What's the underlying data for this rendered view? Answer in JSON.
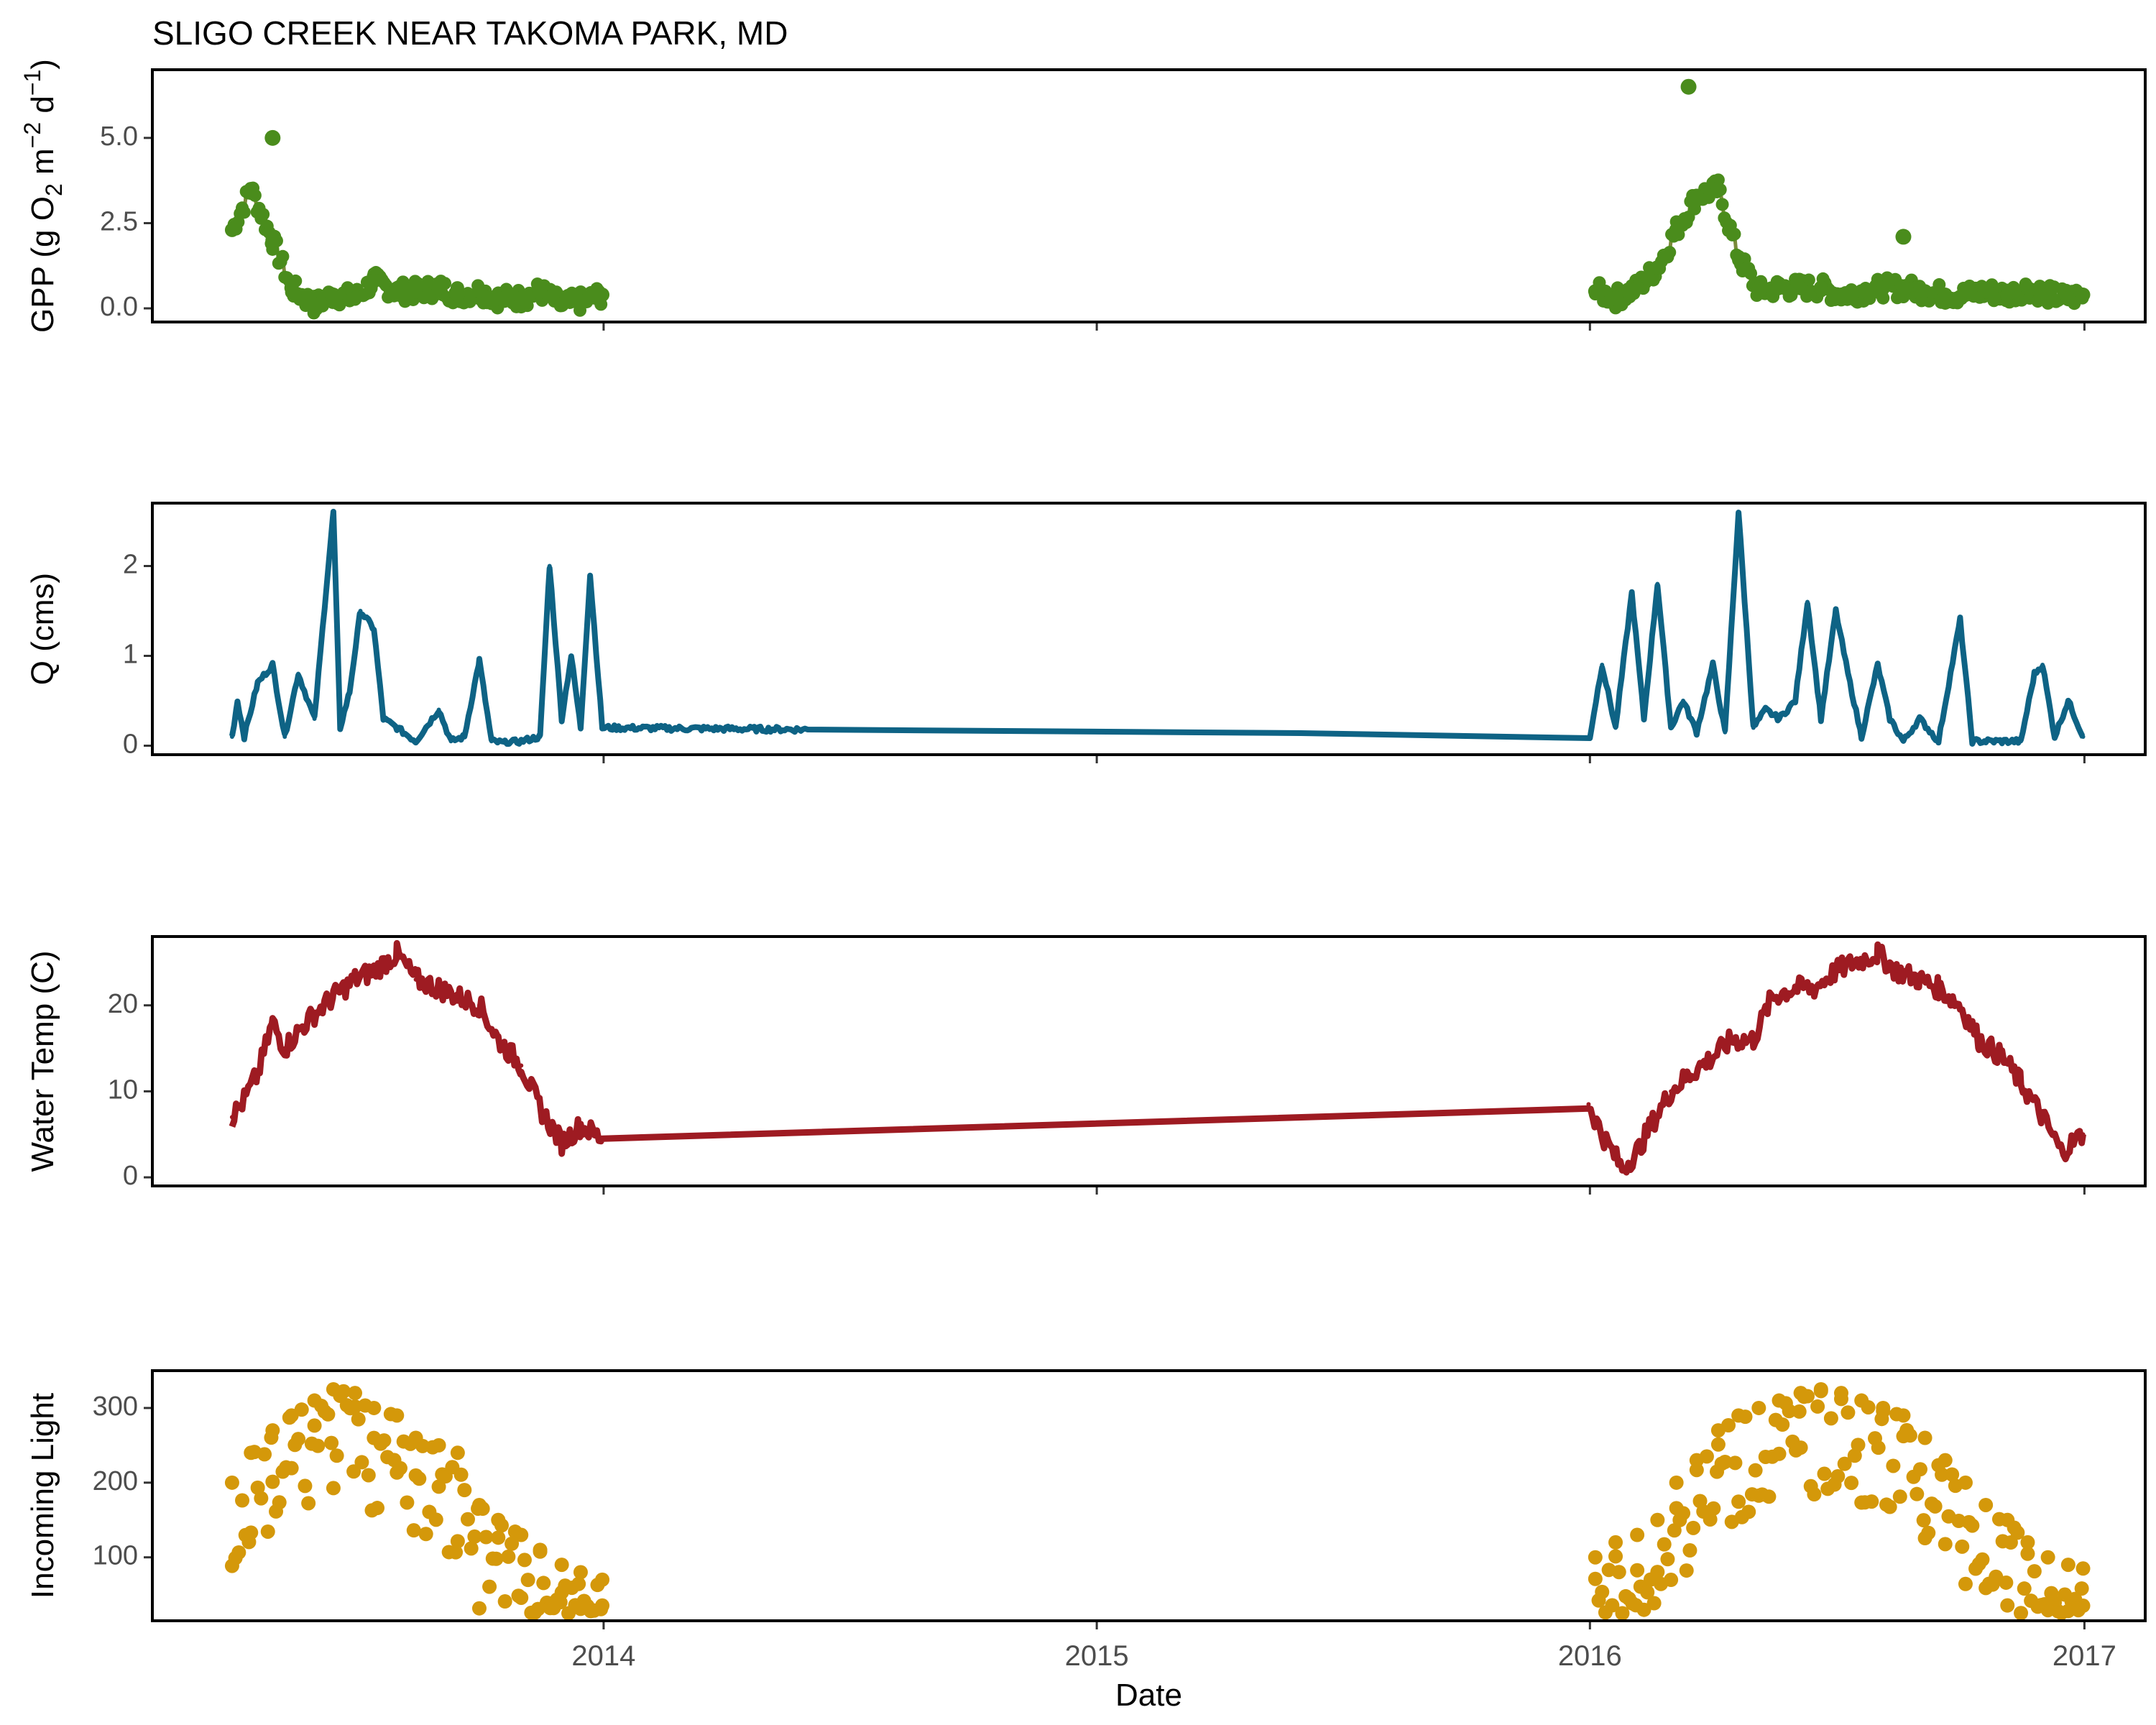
{
  "title": "SLIGO CREEK NEAR TAKOMA PARK, MD",
  "chart_data": [
    {
      "type": "scatter",
      "id": "gpp",
      "ylabel_parts": {
        "main": "GPP (g  O",
        "sub": "2",
        "mid1": " m",
        "sup1": "−2",
        "mid2": " d",
        "sup2": "−1",
        "end": ")"
      },
      "ylabel": "GPP (g  O2 m−2 d−1)",
      "ylim": [
        -0.4,
        7.0
      ],
      "yticks": [
        0.0,
        2.5,
        5.0
      ],
      "ytick_labels": [
        "0.0",
        "2.5",
        "5.0"
      ],
      "color": "#4a8c1c",
      "line_color": "#7a8a3a",
      "x": [
        "2013-04-01",
        "2013-04-15",
        "2013-05-01",
        "2013-05-15",
        "2013-06-01",
        "2013-06-15",
        "2013-07-01",
        "2013-07-15",
        "2013-08-01",
        "2013-08-15",
        "2013-09-01",
        "2013-09-15",
        "2013-10-01",
        "2013-10-15",
        "2013-11-01",
        "2013-11-15",
        "2013-12-01",
        "2013-12-15",
        "2013-12-31",
        "2016-01-05",
        "2016-01-20",
        "2016-02-05",
        "2016-02-20",
        "2016-03-05",
        "2016-03-20",
        "2016-04-05",
        "2016-04-20",
        "2016-05-05",
        "2016-05-20",
        "2016-06-05",
        "2016-06-20",
        "2016-07-05",
        "2016-07-20",
        "2016-08-05",
        "2016-08-20",
        "2016-09-05",
        "2016-09-20",
        "2016-10-05",
        "2016-10-20",
        "2016-11-05",
        "2016-11-20",
        "2016-12-05",
        "2016-12-20",
        "2016-12-31"
      ],
      "y": [
        2.3,
        3.5,
        2.0,
        0.6,
        0.1,
        0.4,
        0.3,
        0.8,
        0.5,
        0.5,
        0.6,
        0.4,
        0.5,
        0.3,
        0.3,
        0.5,
        0.1,
        0.2,
        0.4,
        0.5,
        0.3,
        0.6,
        1.2,
        2.3,
        3.3,
        3.5,
        1.5,
        0.5,
        0.6,
        0.6,
        0.6,
        0.4,
        0.5,
        0.6,
        0.6,
        0.5,
        0.4,
        0.4,
        0.5,
        0.4,
        0.6,
        0.4,
        0.3,
        0.4
      ],
      "outliers": [
        {
          "x": "2013-05-01",
          "y": 5.0
        },
        {
          "x": "2016-03-14",
          "y": 6.5
        },
        {
          "x": "2016-08-20",
          "y": 2.1
        }
      ]
    },
    {
      "type": "line",
      "id": "q",
      "ylabel": "Q (cms)",
      "ylim": [
        -0.1,
        2.7
      ],
      "yticks": [
        0,
        1,
        2
      ],
      "ytick_labels": [
        "0",
        "1",
        "2"
      ],
      "color": "#0e6385",
      "x": [
        "2013-04-01",
        "2013-04-05",
        "2013-04-10",
        "2013-04-20",
        "2013-05-01",
        "2013-05-10",
        "2013-05-20",
        "2013-06-01",
        "2013-06-10",
        "2013-06-15",
        "2013-06-20",
        "2013-06-27",
        "2013-07-05",
        "2013-07-15",
        "2013-07-22",
        "2013-08-01",
        "2013-08-15",
        "2013-09-01",
        "2013-09-10",
        "2013-09-20",
        "2013-10-01",
        "2013-10-10",
        "2013-10-20",
        "2013-11-01",
        "2013-11-15",
        "2013-11-22",
        "2013-12-01",
        "2013-12-08",
        "2013-12-15",
        "2013-12-22",
        "2013-12-31",
        "2014-06-01",
        "2015-06-01",
        "2016-01-01",
        "2016-01-10",
        "2016-01-20",
        "2016-02-01",
        "2016-02-10",
        "2016-02-20",
        "2016-03-01",
        "2016-03-10",
        "2016-03-20",
        "2016-04-01",
        "2016-04-10",
        "2016-04-20",
        "2016-05-01",
        "2016-05-10",
        "2016-05-20",
        "2016-06-01",
        "2016-06-10",
        "2016-06-20",
        "2016-07-01",
        "2016-07-10",
        "2016-07-20",
        "2016-08-01",
        "2016-08-10",
        "2016-08-20",
        "2016-09-01",
        "2016-09-15",
        "2016-10-01",
        "2016-10-10",
        "2016-10-20",
        "2016-11-01",
        "2016-11-15",
        "2016-11-25",
        "2016-12-01",
        "2016-12-10",
        "2016-12-20",
        "2016-12-31"
      ],
      "y": [
        0.1,
        0.5,
        0.1,
        0.7,
        0.9,
        0.1,
        0.8,
        0.3,
        1.8,
        2.6,
        0.2,
        0.6,
        1.5,
        1.3,
        0.3,
        0.2,
        0.05,
        0.4,
        0.05,
        0.1,
        0.95,
        0.05,
        0.03,
        0.05,
        0.1,
        2.0,
        0.3,
        1.0,
        0.2,
        1.9,
        0.2,
        0.18,
        0.14,
        0.1,
        0.9,
        0.2,
        1.7,
        0.3,
        1.8,
        0.2,
        0.5,
        0.15,
        0.9,
        0.15,
        2.6,
        0.2,
        0.4,
        0.3,
        0.5,
        1.6,
        0.3,
        1.5,
        0.8,
        0.1,
        0.9,
        0.3,
        0.05,
        0.3,
        0.05,
        1.4,
        0.05,
        0.05,
        0.05,
        0.05,
        0.8,
        0.9,
        0.1,
        0.5,
        0.1
      ]
    },
    {
      "type": "line",
      "id": "temp",
      "ylabel": "Water Temp (C)",
      "ylim": [
        -1.0,
        28.0
      ],
      "yticks": [
        0,
        10,
        20
      ],
      "ytick_labels": [
        "0",
        "10",
        "20"
      ],
      "color": "#9e1b22",
      "x": [
        "2013-04-01",
        "2013-04-10",
        "2013-04-20",
        "2013-05-01",
        "2013-05-10",
        "2013-05-20",
        "2013-06-01",
        "2013-06-15",
        "2013-07-01",
        "2013-07-15",
        "2013-08-01",
        "2013-08-15",
        "2013-09-01",
        "2013-09-15",
        "2013-10-01",
        "2013-10-15",
        "2013-11-01",
        "2013-11-15",
        "2013-12-01",
        "2013-12-15",
        "2013-12-31",
        "2015-12-31",
        "2016-01-10",
        "2016-01-25",
        "2016-02-05",
        "2016-02-15",
        "2016-03-01",
        "2016-03-15",
        "2016-04-01",
        "2016-04-15",
        "2016-05-01",
        "2016-05-15",
        "2016-06-01",
        "2016-06-15",
        "2016-07-01",
        "2016-07-15",
        "2016-08-01",
        "2016-08-15",
        "2016-09-01",
        "2016-09-15",
        "2016-10-01",
        "2016-10-15",
        "2016-11-01",
        "2016-11-15",
        "2016-12-01",
        "2016-12-15",
        "2016-12-31"
      ],
      "y": [
        7,
        9,
        12,
        18,
        15,
        17,
        19,
        21,
        23,
        24,
        26,
        23,
        22,
        21,
        20,
        16,
        13,
        8,
        4,
        6,
        4.5,
        8.5,
        5,
        1,
        3,
        6,
        10,
        12,
        14,
        16,
        16,
        21,
        22,
        22,
        24,
        25,
        26,
        24,
        23,
        22,
        20,
        16,
        14,
        11,
        7,
        3,
        5
      ]
    },
    {
      "type": "scatter",
      "id": "light",
      "ylabel": "Incoming Light",
      "ylim": [
        15,
        350
      ],
      "yticks": [
        100,
        200,
        300
      ],
      "ytick_labels": [
        "100",
        "200",
        "300"
      ],
      "xlabel": "Date",
      "xticks": [
        "2014-01-01",
        "2015-01-01",
        "2016-01-01",
        "2017-01-01"
      ],
      "xtick_labels": [
        "2014",
        "2015",
        "2016",
        "2017"
      ],
      "color": "#d4980a",
      "x": [
        "2013-04-01",
        "2013-04-15",
        "2013-05-01",
        "2013-05-15",
        "2013-06-01",
        "2013-06-15",
        "2013-07-01",
        "2013-07-15",
        "2013-08-01",
        "2013-08-15",
        "2013-09-01",
        "2013-09-15",
        "2013-10-01",
        "2013-10-15",
        "2013-11-01",
        "2013-11-15",
        "2013-12-01",
        "2013-12-15",
        "2013-12-31",
        "2016-01-05",
        "2016-01-20",
        "2016-02-05",
        "2016-02-20",
        "2016-03-05",
        "2016-03-20",
        "2016-04-05",
        "2016-04-20",
        "2016-05-05",
        "2016-05-20",
        "2016-06-05",
        "2016-06-20",
        "2016-07-05",
        "2016-07-20",
        "2016-08-05",
        "2016-08-20",
        "2016-09-05",
        "2016-09-20",
        "2016-10-05",
        "2016-10-20",
        "2016-11-05",
        "2016-11-20",
        "2016-12-05",
        "2016-12-20",
        "2016-12-31"
      ],
      "y": [
        200,
        240,
        270,
        290,
        310,
        325,
        320,
        300,
        290,
        260,
        250,
        240,
        170,
        150,
        130,
        110,
        90,
        80,
        70,
        100,
        120,
        130,
        150,
        200,
        230,
        270,
        290,
        300,
        310,
        320,
        325,
        320,
        310,
        300,
        290,
        260,
        230,
        200,
        170,
        150,
        120,
        100,
        90,
        85
      ]
    }
  ]
}
